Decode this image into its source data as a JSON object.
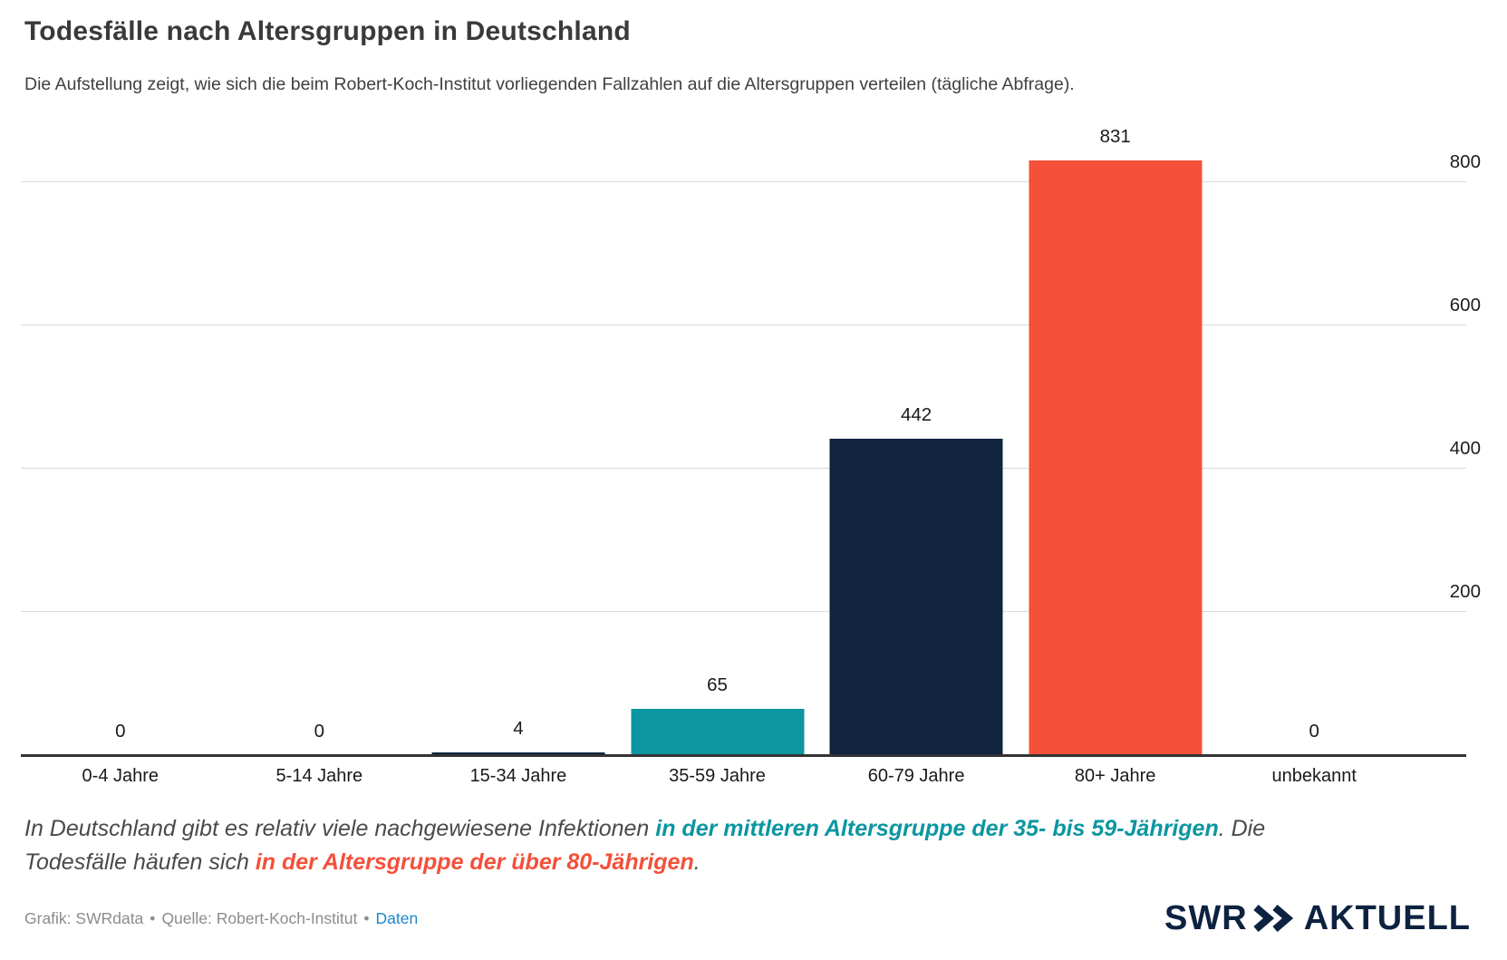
{
  "title": "Todesfälle nach Altersgruppen in Deutschland",
  "subtitle": "Die Aufstellung zeigt, wie sich die beim Robert-Koch-Institut vorliegenden Fallzahlen auf die Altersgruppen verteilen (tägliche Abfrage).",
  "chart_data": {
    "type": "bar",
    "categories": [
      "0-4 Jahre",
      "5-14 Jahre",
      "15-34 Jahre",
      "35-59 Jahre",
      "60-79 Jahre",
      "80+ Jahre",
      "unbekannt"
    ],
    "values": [
      0,
      0,
      4,
      65,
      442,
      831,
      0
    ],
    "bar_colors": [
      "#102440",
      "#102440",
      "#102440",
      "#0b96a1",
      "#102440",
      "#f4503a",
      "#102440"
    ],
    "title": "Todesfälle nach Altersgruppen in Deutschland",
    "xlabel": "",
    "ylabel": "",
    "ylim": [
      0,
      840
    ],
    "yticks": [
      200,
      400,
      600,
      800
    ],
    "grid": true,
    "ytick_side": "right",
    "value_labels_shown": true
  },
  "annotation": {
    "lines": [
      [
        {
          "text": "In Deutschland gibt es relativ viele nachgewiesene Infektionen ",
          "style": "normal"
        },
        {
          "text": "in der mittleren Altersgruppe der 35- bis 59-Jährigen",
          "style": "teal"
        },
        {
          "text": ". Die",
          "style": "normal"
        }
      ],
      [
        {
          "text": "Todesfälle häufen sich ",
          "style": "normal"
        },
        {
          "text": "in der Altersgruppe der über 80-Jährigen",
          "style": "red"
        },
        {
          "text": ".",
          "style": "normal"
        }
      ]
    ]
  },
  "credit": {
    "grafik": "Grafik: SWRdata",
    "separator": "•",
    "quelle": "Quelle: Robert-Koch-Institut",
    "link": "Daten"
  },
  "logo": {
    "swr": "SWR",
    "aktuell": "AKTUELL"
  },
  "colors": {
    "accent_red": "#f4503a",
    "accent_teal": "#0b96a1",
    "navy": "#102440",
    "link_blue": "#1d87c9",
    "grid": "#d9d9d9",
    "axis": "#333333",
    "credit_gray": "#8c8c8c",
    "logo_navy": "#0d2240"
  }
}
